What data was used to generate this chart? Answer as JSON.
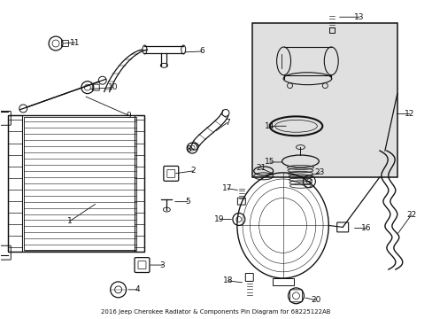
{
  "title": "2016 Jeep Cherokee Radiator & Components Pin Diagram for 68225122AB",
  "bg": "#ffffff",
  "lc": "#111111",
  "fs": 6.5,
  "fig_w": 4.89,
  "fig_h": 3.6,
  "dpi": 100
}
